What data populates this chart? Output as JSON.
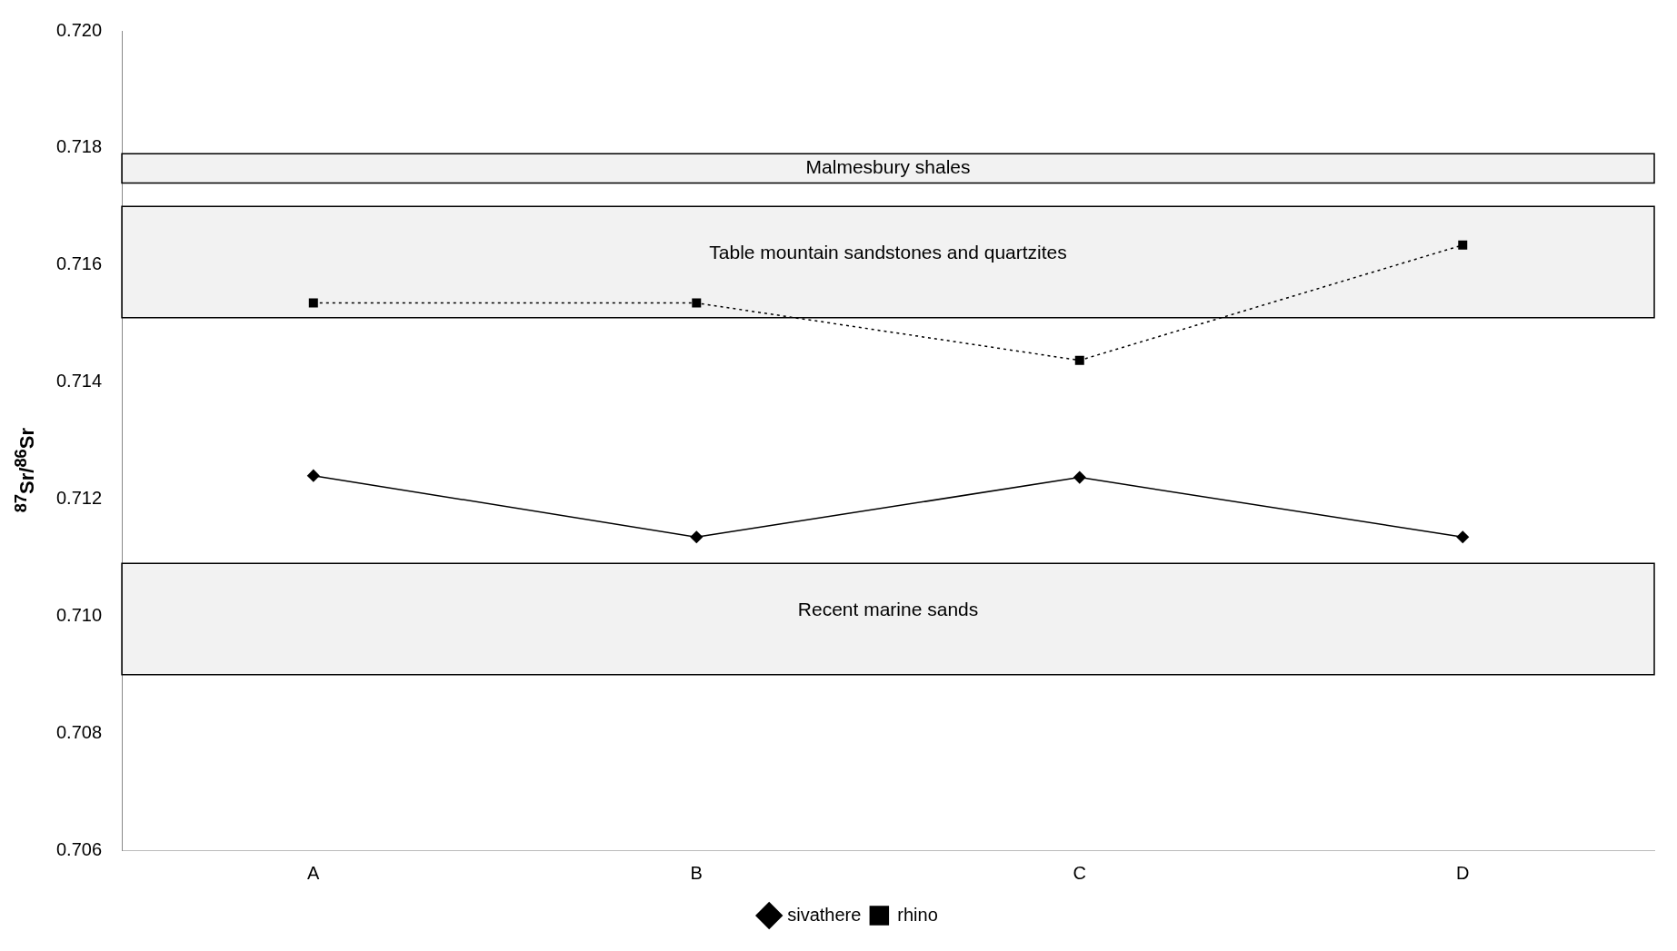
{
  "chart_data": {
    "type": "line",
    "ylabel": "$^{87}$Sr/$^{86}$Sr",
    "categories": [
      "A",
      "B",
      "C",
      "D"
    ],
    "series": [
      {
        "name": "sivathere",
        "color": "#000000",
        "values": [
          0.7124,
          0.71135,
          0.71237,
          0.71135
        ],
        "marker": "diamond",
        "line_style": "solid"
      },
      {
        "name": "rhino",
        "color": "#000000",
        "values": [
          0.71535,
          0.71535,
          0.71437,
          0.71634
        ],
        "marker": "square",
        "line_style": "dotted"
      }
    ],
    "ylim": [
      0.706,
      0.72
    ],
    "yticks": [
      {
        "value": 0.706,
        "label": "0.706"
      },
      {
        "value": 0.708,
        "label": "0.708"
      },
      {
        "value": 0.71,
        "label": "0.710"
      },
      {
        "value": 0.712,
        "label": "0.712"
      },
      {
        "value": 0.714,
        "label": "0.714"
      },
      {
        "value": 0.716,
        "label": "0.716"
      },
      {
        "value": 0.718,
        "label": "0.718"
      },
      {
        "value": 0.72,
        "label": "0.720"
      }
    ],
    "bands": [
      {
        "axis": "y",
        "from": 0.7174,
        "to": 0.7179,
        "label": "Malmesbury shales",
        "color": "#000000"
      },
      {
        "axis": "y",
        "from": 0.7151,
        "to": 0.717,
        "label": "Table mountain sandstones and quartzites",
        "color": "#000000"
      },
      {
        "axis": "y",
        "from": 0.709,
        "to": 0.7109,
        "label": "Recent marine sands",
        "color": "#000000"
      }
    ],
    "grid": false,
    "legend": "bottom"
  }
}
